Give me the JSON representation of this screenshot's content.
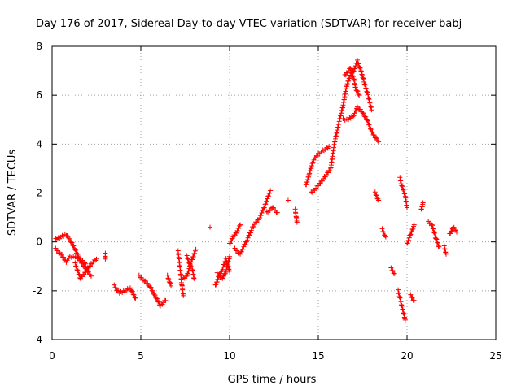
{
  "chart_data": {
    "type": "scatter",
    "title": "Day 176 of 2017, Sidereal Day-to-day VTEC variation (SDTVAR) for receiver babj",
    "xlabel": "GPS time / hours",
    "ylabel": "SDTVAR / TECUs",
    "xlim": [
      0,
      25
    ],
    "ylim": [
      -4,
      8
    ],
    "xticks": [
      0,
      5,
      10,
      15,
      20,
      25
    ],
    "yticks": [
      -4,
      -2,
      0,
      2,
      4,
      6,
      8
    ],
    "xtick_labels": [
      "0",
      "5",
      "10",
      "15",
      "20",
      "25"
    ],
    "ytick_labels": [
      "-4",
      "-2",
      "0",
      "2",
      "4",
      "6",
      "8"
    ],
    "grid": true,
    "marker": "+",
    "series_color": "#ff0000",
    "tracks": [
      {
        "name": "track-01",
        "points": [
          [
            0.2,
            0.1
          ],
          [
            0.5,
            0.2
          ],
          [
            0.8,
            0.3
          ],
          [
            1.0,
            0.1
          ],
          [
            1.3,
            -0.3
          ],
          [
            1.6,
            -0.8
          ],
          [
            1.9,
            -1.1
          ],
          [
            2.2,
            -1.4
          ]
        ]
      },
      {
        "name": "track-02",
        "points": [
          [
            0.2,
            -0.3
          ],
          [
            0.5,
            -0.5
          ],
          [
            0.8,
            -0.8
          ],
          [
            1.0,
            -0.6
          ],
          [
            1.3,
            -0.6
          ],
          [
            1.6,
            -0.7
          ],
          [
            1.9,
            -0.9
          ]
        ]
      },
      {
        "name": "track-03",
        "points": [
          [
            1.3,
            -0.9
          ],
          [
            1.6,
            -1.5
          ],
          [
            1.9,
            -1.2
          ],
          [
            2.2,
            -0.9
          ],
          [
            2.5,
            -0.7
          ]
        ]
      },
      {
        "name": "track-04",
        "points": [
          [
            3.0,
            -0.5
          ],
          [
            3.0,
            -0.7
          ]
        ]
      },
      {
        "name": "track-05",
        "points": [
          [
            3.5,
            -1.8
          ],
          [
            3.8,
            -2.1
          ],
          [
            4.1,
            -2.0
          ],
          [
            4.4,
            -1.9
          ],
          [
            4.7,
            -2.3
          ]
        ]
      },
      {
        "name": "track-06",
        "points": [
          [
            4.9,
            -1.4
          ],
          [
            5.2,
            -1.6
          ],
          [
            5.5,
            -1.8
          ],
          [
            5.8,
            -2.2
          ],
          [
            6.1,
            -2.6
          ],
          [
            6.4,
            -2.4
          ]
        ]
      },
      {
        "name": "track-07",
        "points": [
          [
            6.5,
            -1.4
          ],
          [
            6.7,
            -1.8
          ]
        ]
      },
      {
        "name": "track-08",
        "points": [
          [
            7.1,
            -0.4
          ],
          [
            7.2,
            -1.0
          ],
          [
            7.3,
            -1.7
          ],
          [
            7.4,
            -2.2
          ]
        ]
      },
      {
        "name": "track-09",
        "points": [
          [
            7.4,
            -1.5
          ],
          [
            7.6,
            -1.4
          ],
          [
            7.8,
            -0.9
          ],
          [
            8.0,
            -0.5
          ],
          [
            8.1,
            -0.3
          ]
        ]
      },
      {
        "name": "track-10",
        "points": [
          [
            7.6,
            -0.6
          ],
          [
            7.8,
            -1.0
          ],
          [
            7.9,
            -1.1
          ],
          [
            8.0,
            -1.5
          ]
        ]
      },
      {
        "name": "track-11",
        "points": [
          [
            8.9,
            0.6
          ]
        ]
      },
      {
        "name": "track-12",
        "points": [
          [
            9.2,
            -1.8
          ],
          [
            9.4,
            -1.4
          ],
          [
            9.6,
            -1.1
          ],
          [
            9.8,
            -0.7
          ],
          [
            10.0,
            -1.2
          ]
        ]
      },
      {
        "name": "track-13",
        "points": [
          [
            9.3,
            -1.3
          ],
          [
            9.6,
            -1.5
          ],
          [
            9.8,
            -1.2
          ],
          [
            10.0,
            -0.6
          ]
        ]
      },
      {
        "name": "track-14",
        "points": [
          [
            10.0,
            -0.1
          ],
          [
            10.2,
            0.2
          ],
          [
            10.4,
            0.4
          ],
          [
            10.6,
            0.7
          ]
        ]
      },
      {
        "name": "track-15",
        "points": [
          [
            10.3,
            -0.3
          ],
          [
            10.6,
            -0.5
          ],
          [
            11.0,
            0.1
          ],
          [
            11.3,
            0.6
          ],
          [
            11.7,
            1.0
          ],
          [
            12.0,
            1.5
          ],
          [
            12.3,
            2.1
          ]
        ]
      },
      {
        "name": "track-16",
        "points": [
          [
            12.1,
            1.2
          ],
          [
            12.4,
            1.4
          ],
          [
            12.7,
            1.2
          ]
        ]
      },
      {
        "name": "track-17",
        "points": [
          [
            13.3,
            1.7
          ]
        ]
      },
      {
        "name": "track-18",
        "points": [
          [
            13.7,
            1.3
          ],
          [
            13.8,
            0.8
          ]
        ]
      },
      {
        "name": "track-19",
        "points": [
          [
            14.3,
            2.3
          ],
          [
            14.5,
            2.8
          ],
          [
            14.7,
            3.3
          ],
          [
            15.0,
            3.6
          ],
          [
            15.4,
            3.8
          ],
          [
            15.6,
            3.9
          ]
        ]
      },
      {
        "name": "track-20",
        "points": [
          [
            14.6,
            2.0
          ],
          [
            15.0,
            2.3
          ],
          [
            15.4,
            2.7
          ],
          [
            15.7,
            3.0
          ],
          [
            15.9,
            4.0
          ],
          [
            16.2,
            5.0
          ],
          [
            16.4,
            5.6
          ],
          [
            16.6,
            6.4
          ],
          [
            16.8,
            6.8
          ],
          [
            17.0,
            7.0
          ],
          [
            17.2,
            7.4
          ],
          [
            17.4,
            7.0
          ],
          [
            17.6,
            6.5
          ],
          [
            17.8,
            6.0
          ],
          [
            18.0,
            5.4
          ]
        ]
      },
      {
        "name": "track-21",
        "points": [
          [
            16.4,
            5.0
          ],
          [
            16.7,
            5.0
          ],
          [
            17.0,
            5.2
          ],
          [
            17.2,
            5.5
          ],
          [
            17.5,
            5.3
          ],
          [
            17.8,
            4.9
          ],
          [
            18.0,
            4.5
          ],
          [
            18.2,
            4.3
          ],
          [
            18.4,
            4.1
          ]
        ]
      },
      {
        "name": "track-22",
        "points": [
          [
            16.5,
            6.8
          ],
          [
            16.8,
            7.1
          ],
          [
            17.0,
            6.7
          ],
          [
            17.1,
            6.3
          ],
          [
            17.3,
            6.0
          ]
        ]
      },
      {
        "name": "track-23",
        "points": [
          [
            18.2,
            2.0
          ],
          [
            18.4,
            1.7
          ]
        ]
      },
      {
        "name": "track-24",
        "points": [
          [
            18.6,
            0.5
          ],
          [
            18.8,
            0.2
          ]
        ]
      },
      {
        "name": "track-25",
        "points": [
          [
            19.1,
            -1.1
          ],
          [
            19.3,
            -1.3
          ]
        ]
      },
      {
        "name": "track-26",
        "points": [
          [
            19.5,
            -2.0
          ],
          [
            19.7,
            -2.6
          ],
          [
            19.9,
            -3.2
          ]
        ]
      },
      {
        "name": "track-27",
        "points": [
          [
            19.6,
            2.6
          ],
          [
            19.7,
            2.3
          ],
          [
            19.9,
            1.9
          ],
          [
            20.0,
            1.4
          ]
        ]
      },
      {
        "name": "track-28",
        "points": [
          [
            20.0,
            -0.1
          ],
          [
            20.2,
            0.3
          ],
          [
            20.4,
            0.7
          ]
        ]
      },
      {
        "name": "track-29",
        "points": [
          [
            20.2,
            -2.2
          ],
          [
            20.4,
            -2.4
          ]
        ]
      },
      {
        "name": "track-30",
        "points": [
          [
            20.8,
            1.3
          ],
          [
            20.9,
            1.6
          ]
        ]
      },
      {
        "name": "track-31",
        "points": [
          [
            21.2,
            0.8
          ],
          [
            21.4,
            0.7
          ],
          [
            21.6,
            0.2
          ],
          [
            21.8,
            -0.2
          ]
        ]
      },
      {
        "name": "track-32",
        "points": [
          [
            22.1,
            -0.2
          ],
          [
            22.2,
            -0.5
          ]
        ]
      },
      {
        "name": "track-33",
        "points": [
          [
            22.4,
            0.3
          ],
          [
            22.6,
            0.6
          ],
          [
            22.8,
            0.4
          ]
        ]
      }
    ]
  }
}
